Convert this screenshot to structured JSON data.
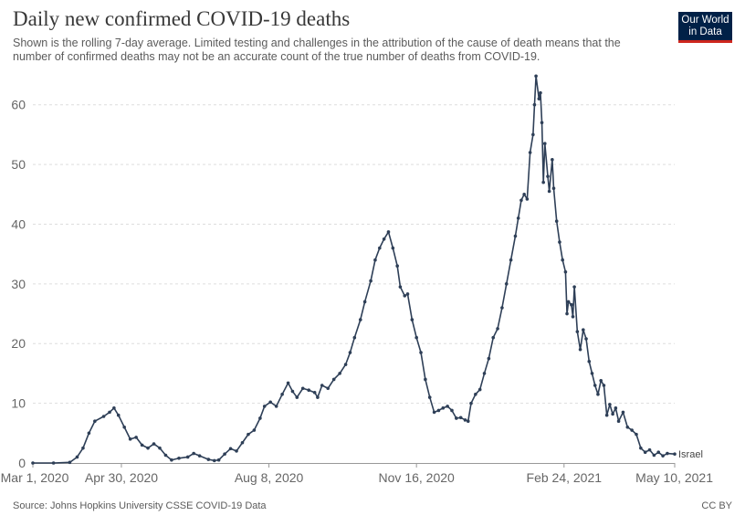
{
  "header": {
    "title": "Daily new confirmed COVID-19 deaths",
    "subtitle": "Shown is the rolling 7-day average. Limited testing and challenges in the attribution of the cause of death means that the number of confirmed deaths may not be an accurate count of the true number of deaths from COVID-19.",
    "logo_line1": "Our World",
    "logo_line2": "in Data"
  },
  "footer": {
    "source": "Source: Johns Hopkins University CSSE COVID-19 Data",
    "license": "CC BY"
  },
  "colors": {
    "line": "#2e3f57",
    "grid": "#dddddd",
    "logo_bg": "#002147",
    "logo_accent": "#ce261e"
  },
  "chart_data": {
    "type": "line",
    "title": "Daily new confirmed COVID-19 deaths",
    "ylim": [
      0,
      65
    ],
    "yticks": [
      0,
      10,
      20,
      30,
      40,
      50,
      60
    ],
    "xlim": [
      "2020-03-01",
      "2021-05-10"
    ],
    "xticks": [
      {
        "date": "2020-03-01",
        "label": "Mar 1, 2020"
      },
      {
        "date": "2020-04-30",
        "label": "Apr 30, 2020"
      },
      {
        "date": "2020-08-08",
        "label": "Aug 8, 2020"
      },
      {
        "date": "2020-11-16",
        "label": "Nov 16, 2020"
      },
      {
        "date": "2021-02-24",
        "label": "Feb 24, 2021"
      },
      {
        "date": "2021-05-10",
        "label": "May 10, 2021"
      }
    ],
    "grid": "horizontal dashed",
    "series": [
      {
        "name": "Israel",
        "points": [
          [
            "2020-03-01",
            0
          ],
          [
            "2020-03-15",
            0
          ],
          [
            "2020-03-26",
            0.1
          ],
          [
            "2020-03-31",
            1
          ],
          [
            "2020-04-04",
            2.5
          ],
          [
            "2020-04-08",
            5
          ],
          [
            "2020-04-12",
            7
          ],
          [
            "2020-04-18",
            7.8
          ],
          [
            "2020-04-22",
            8.5
          ],
          [
            "2020-04-25",
            9.2
          ],
          [
            "2020-04-28",
            8
          ],
          [
            "2020-05-02",
            6
          ],
          [
            "2020-05-06",
            4
          ],
          [
            "2020-05-10",
            4.3
          ],
          [
            "2020-05-14",
            3
          ],
          [
            "2020-05-18",
            2.5
          ],
          [
            "2020-05-22",
            3.2
          ],
          [
            "2020-05-26",
            2.5
          ],
          [
            "2020-05-30",
            1.3
          ],
          [
            "2020-06-03",
            0.5
          ],
          [
            "2020-06-08",
            0.8
          ],
          [
            "2020-06-14",
            1
          ],
          [
            "2020-06-18",
            1.6
          ],
          [
            "2020-06-22",
            1.2
          ],
          [
            "2020-06-28",
            0.6
          ],
          [
            "2020-07-02",
            0.4
          ],
          [
            "2020-07-05",
            0.5
          ],
          [
            "2020-07-09",
            1.5
          ],
          [
            "2020-07-13",
            2.4
          ],
          [
            "2020-07-17",
            2
          ],
          [
            "2020-07-21",
            3.4
          ],
          [
            "2020-07-25",
            4.8
          ],
          [
            "2020-07-29",
            5.5
          ],
          [
            "2020-08-02",
            7.5
          ],
          [
            "2020-08-05",
            9.5
          ],
          [
            "2020-08-09",
            10.2
          ],
          [
            "2020-08-13",
            9.5
          ],
          [
            "2020-08-17",
            11.5
          ],
          [
            "2020-08-21",
            13.4
          ],
          [
            "2020-08-24",
            12
          ],
          [
            "2020-08-27",
            11
          ],
          [
            "2020-08-31",
            12.5
          ],
          [
            "2020-09-04",
            12.2
          ],
          [
            "2020-09-08",
            11.8
          ],
          [
            "2020-09-10",
            11
          ],
          [
            "2020-09-13",
            13
          ],
          [
            "2020-09-17",
            12.5
          ],
          [
            "2020-09-21",
            14
          ],
          [
            "2020-09-25",
            15
          ],
          [
            "2020-09-29",
            16.5
          ],
          [
            "2020-10-02",
            18.5
          ],
          [
            "2020-10-05",
            21
          ],
          [
            "2020-10-09",
            24
          ],
          [
            "2020-10-12",
            27
          ],
          [
            "2020-10-16",
            30.5
          ],
          [
            "2020-10-19",
            34
          ],
          [
            "2020-10-22",
            36
          ],
          [
            "2020-10-25",
            37.5
          ],
          [
            "2020-10-28",
            38.7
          ],
          [
            "2020-10-31",
            36
          ],
          [
            "2020-11-03",
            33
          ],
          [
            "2020-11-05",
            29.5
          ],
          [
            "2020-11-08",
            28
          ],
          [
            "2020-11-10",
            28.3
          ],
          [
            "2020-11-13",
            24
          ],
          [
            "2020-11-16",
            21
          ],
          [
            "2020-11-19",
            18.5
          ],
          [
            "2020-11-22",
            14
          ],
          [
            "2020-11-25",
            11
          ],
          [
            "2020-11-28",
            8.5
          ],
          [
            "2020-12-01",
            8.8
          ],
          [
            "2020-12-04",
            9.2
          ],
          [
            "2020-12-07",
            9.5
          ],
          [
            "2020-12-10",
            8.8
          ],
          [
            "2020-12-13",
            7.5
          ],
          [
            "2020-12-16",
            7.6
          ],
          [
            "2020-12-19",
            7.2
          ],
          [
            "2020-12-21",
            7
          ],
          [
            "2020-12-23",
            10
          ],
          [
            "2020-12-26",
            11.5
          ],
          [
            "2020-12-29",
            12.3
          ],
          [
            "2021-01-01",
            15
          ],
          [
            "2021-01-04",
            17.5
          ],
          [
            "2021-01-07",
            21
          ],
          [
            "2021-01-10",
            22.5
          ],
          [
            "2021-01-13",
            26
          ],
          [
            "2021-01-16",
            30
          ],
          [
            "2021-01-19",
            34
          ],
          [
            "2021-01-22",
            38
          ],
          [
            "2021-01-24",
            41
          ],
          [
            "2021-01-26",
            44
          ],
          [
            "2021-01-28",
            45
          ],
          [
            "2021-01-30",
            44.2
          ],
          [
            "2021-02-01",
            52
          ],
          [
            "2021-02-03",
            55
          ],
          [
            "2021-02-04",
            60
          ],
          [
            "2021-02-05",
            64.8
          ],
          [
            "2021-02-07",
            61
          ],
          [
            "2021-02-08",
            62
          ],
          [
            "2021-02-09",
            57
          ],
          [
            "2021-02-10",
            47
          ],
          [
            "2021-02-11",
            53.5
          ],
          [
            "2021-02-13",
            48
          ],
          [
            "2021-02-14",
            45.5
          ],
          [
            "2021-02-16",
            50.8
          ],
          [
            "2021-02-17",
            46
          ],
          [
            "2021-02-19",
            40.5
          ],
          [
            "2021-02-21",
            37
          ],
          [
            "2021-02-23",
            34
          ],
          [
            "2021-02-25",
            32
          ],
          [
            "2021-02-26",
            25
          ],
          [
            "2021-02-27",
            27
          ],
          [
            "2021-03-01",
            26.5
          ],
          [
            "2021-03-02",
            24.5
          ],
          [
            "2021-03-03",
            29.5
          ],
          [
            "2021-03-05",
            22
          ],
          [
            "2021-03-07",
            19
          ],
          [
            "2021-03-09",
            22.3
          ],
          [
            "2021-03-11",
            20.8
          ],
          [
            "2021-03-13",
            17
          ],
          [
            "2021-03-15",
            15
          ],
          [
            "2021-03-17",
            13
          ],
          [
            "2021-03-19",
            11.5
          ],
          [
            "2021-03-21",
            13.8
          ],
          [
            "2021-03-23",
            13
          ],
          [
            "2021-03-25",
            8
          ],
          [
            "2021-03-27",
            9.8
          ],
          [
            "2021-03-29",
            8.2
          ],
          [
            "2021-03-31",
            9.2
          ],
          [
            "2021-04-02",
            7
          ],
          [
            "2021-04-05",
            8.5
          ],
          [
            "2021-04-08",
            6
          ],
          [
            "2021-04-11",
            5.5
          ],
          [
            "2021-04-14",
            4.8
          ],
          [
            "2021-04-17",
            2.5
          ],
          [
            "2021-04-20",
            1.8
          ],
          [
            "2021-04-23",
            2.2
          ],
          [
            "2021-04-26",
            1.3
          ],
          [
            "2021-04-29",
            1.8
          ],
          [
            "2021-05-02",
            1.2
          ],
          [
            "2021-05-05",
            1.6
          ],
          [
            "2021-05-10",
            1.5
          ]
        ]
      }
    ]
  }
}
